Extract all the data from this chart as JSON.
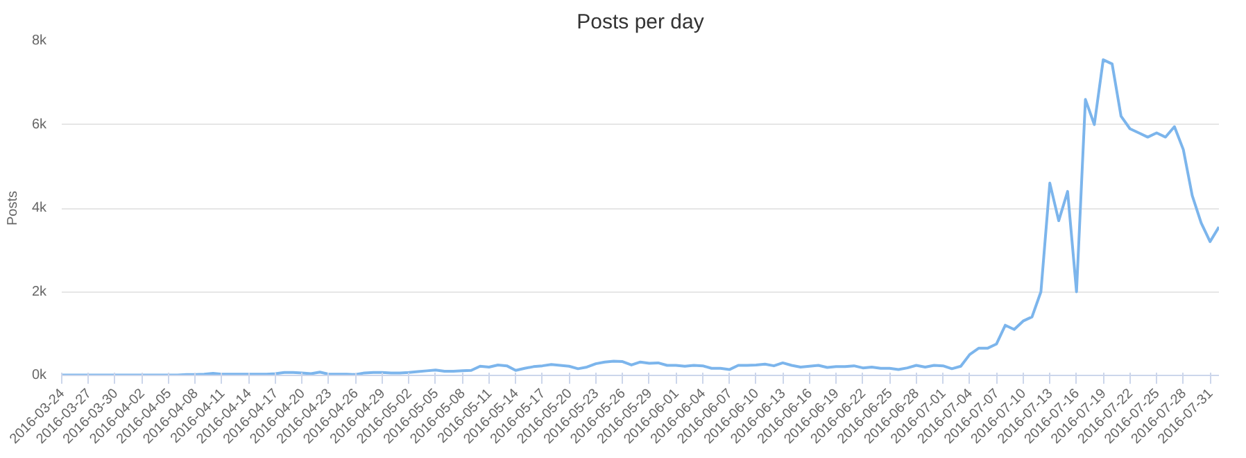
{
  "chart_data": {
    "type": "line",
    "title": "Posts per day",
    "ylabel": "Posts",
    "x": [
      "2016-03-24",
      "2016-03-25",
      "2016-03-26",
      "2016-03-27",
      "2016-03-28",
      "2016-03-29",
      "2016-03-30",
      "2016-03-31",
      "2016-04-01",
      "2016-04-02",
      "2016-04-03",
      "2016-04-04",
      "2016-04-05",
      "2016-04-06",
      "2016-04-07",
      "2016-04-08",
      "2016-04-09",
      "2016-04-10",
      "2016-04-11",
      "2016-04-12",
      "2016-04-13",
      "2016-04-14",
      "2016-04-15",
      "2016-04-16",
      "2016-04-17",
      "2016-04-18",
      "2016-04-19",
      "2016-04-20",
      "2016-04-21",
      "2016-04-22",
      "2016-04-23",
      "2016-04-24",
      "2016-04-25",
      "2016-04-26",
      "2016-04-27",
      "2016-04-28",
      "2016-04-29",
      "2016-04-30",
      "2016-05-01",
      "2016-05-02",
      "2016-05-03",
      "2016-05-04",
      "2016-05-05",
      "2016-05-06",
      "2016-05-07",
      "2016-05-08",
      "2016-05-09",
      "2016-05-10",
      "2016-05-11",
      "2016-05-12",
      "2016-05-13",
      "2016-05-14",
      "2016-05-15",
      "2016-05-16",
      "2016-05-17",
      "2016-05-18",
      "2016-05-19",
      "2016-05-20",
      "2016-05-21",
      "2016-05-22",
      "2016-05-23",
      "2016-05-24",
      "2016-05-25",
      "2016-05-26",
      "2016-05-27",
      "2016-05-28",
      "2016-05-29",
      "2016-05-30",
      "2016-05-31",
      "2016-06-01",
      "2016-06-02",
      "2016-06-03",
      "2016-06-04",
      "2016-06-05",
      "2016-06-06",
      "2016-06-07",
      "2016-06-08",
      "2016-06-09",
      "2016-06-10",
      "2016-06-11",
      "2016-06-12",
      "2016-06-13",
      "2016-06-14",
      "2016-06-15",
      "2016-06-16",
      "2016-06-17",
      "2016-06-18",
      "2016-06-19",
      "2016-06-20",
      "2016-06-21",
      "2016-06-22",
      "2016-06-23",
      "2016-06-24",
      "2016-06-25",
      "2016-06-26",
      "2016-06-27",
      "2016-06-28",
      "2016-06-29",
      "2016-06-30",
      "2016-07-01",
      "2016-07-02",
      "2016-07-03",
      "2016-07-04",
      "2016-07-05",
      "2016-07-06",
      "2016-07-07",
      "2016-07-08",
      "2016-07-09",
      "2016-07-10",
      "2016-07-11",
      "2016-07-12",
      "2016-07-13",
      "2016-07-14",
      "2016-07-15",
      "2016-07-16",
      "2016-07-17",
      "2016-07-18",
      "2016-07-19",
      "2016-07-20",
      "2016-07-21",
      "2016-07-22",
      "2016-07-23",
      "2016-07-24",
      "2016-07-25",
      "2016-07-26",
      "2016-07-27",
      "2016-07-28",
      "2016-07-29",
      "2016-07-30",
      "2016-07-31",
      "2016-08-01"
    ],
    "series": [
      {
        "color": "#7cb5ec",
        "values": [
          10,
          10,
          10,
          10,
          10,
          10,
          10,
          10,
          10,
          10,
          10,
          10,
          10,
          10,
          20,
          20,
          30,
          50,
          30,
          30,
          30,
          30,
          30,
          30,
          40,
          70,
          70,
          60,
          40,
          80,
          30,
          30,
          30,
          20,
          60,
          70,
          70,
          60,
          60,
          70,
          90,
          110,
          130,
          100,
          100,
          110,
          120,
          220,
          200,
          250,
          230,
          120,
          170,
          210,
          230,
          260,
          240,
          220,
          160,
          200,
          280,
          320,
          340,
          330,
          250,
          320,
          290,
          300,
          240,
          240,
          220,
          240,
          230,
          170,
          170,
          140,
          240,
          240,
          250,
          270,
          230,
          300,
          240,
          200,
          220,
          240,
          190,
          210,
          210,
          230,
          180,
          200,
          170,
          170,
          140,
          180,
          240,
          200,
          240,
          230,
          160,
          220,
          500,
          650,
          650,
          750,
          1200,
          1100,
          1300,
          1400,
          2000,
          4600,
          3700,
          4400,
          2000,
          6600,
          6000,
          7550,
          7450,
          6200,
          5900,
          5800,
          5700,
          5800,
          5700,
          5950,
          5400,
          4300,
          3650,
          3200,
          3550
        ]
      }
    ],
    "xlim": [
      "2016-03-24",
      "2016-08-01"
    ],
    "xticks": [
      "2016-03-24",
      "2016-03-27",
      "2016-03-30",
      "2016-04-02",
      "2016-04-05",
      "2016-04-08",
      "2016-04-11",
      "2016-04-14",
      "2016-04-17",
      "2016-04-20",
      "2016-04-23",
      "2016-04-26",
      "2016-04-29",
      "2016-05-02",
      "2016-05-05",
      "2016-05-08",
      "2016-05-11",
      "2016-05-14",
      "2016-05-17",
      "2016-05-20",
      "2016-05-23",
      "2016-05-26",
      "2016-05-29",
      "2016-06-01",
      "2016-06-04",
      "2016-06-07",
      "2016-06-10",
      "2016-06-13",
      "2016-06-16",
      "2016-06-19",
      "2016-06-22",
      "2016-06-25",
      "2016-06-28",
      "2016-07-01",
      "2016-07-04",
      "2016-07-07",
      "2016-07-10",
      "2016-07-13",
      "2016-07-16",
      "2016-07-19",
      "2016-07-22",
      "2016-07-25",
      "2016-07-28",
      "2016-07-31"
    ],
    "ylim": [
      0,
      8000
    ],
    "yticks": [
      {
        "value": 0,
        "label": "0k"
      },
      {
        "value": 2000,
        "label": "2k"
      },
      {
        "value": 4000,
        "label": "4k"
      },
      {
        "value": 6000,
        "label": "6k"
      },
      {
        "value": 8000,
        "label": "8k"
      }
    ],
    "grid": "y",
    "marker": "none",
    "line_style": "solid"
  }
}
